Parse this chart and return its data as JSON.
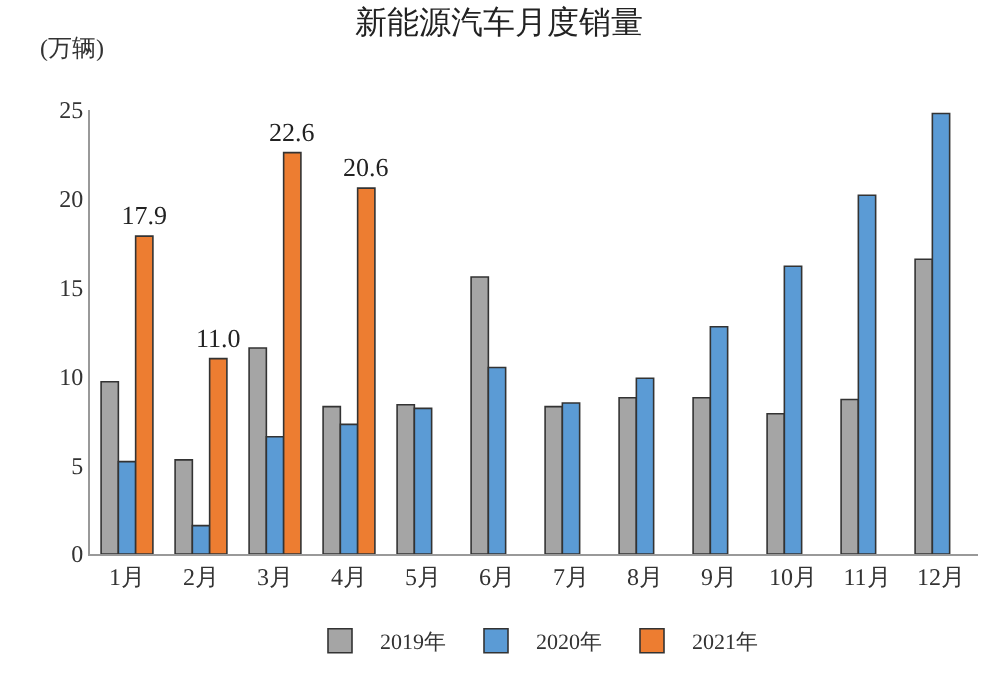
{
  "chart_data": {
    "type": "bar",
    "title": "新能源汽车月度销量",
    "ylabel": "(万辆)",
    "categories": [
      "1月",
      "2月",
      "3月",
      "4月",
      "5月",
      "6月",
      "7月",
      "8月",
      "9月",
      "10月",
      "11月",
      "12月"
    ],
    "series": [
      {
        "name": "2019年",
        "color": "#a5a5a5",
        "values": [
          9.7,
          5.3,
          11.6,
          8.3,
          8.4,
          15.6,
          8.3,
          8.8,
          8.8,
          7.9,
          8.7,
          16.6
        ]
      },
      {
        "name": "2020年",
        "color": "#5b9bd5",
        "values": [
          5.2,
          1.6,
          6.6,
          7.3,
          8.2,
          10.5,
          8.5,
          9.9,
          12.8,
          16.2,
          20.2,
          24.8
        ]
      },
      {
        "name": "2021年",
        "color": "#ed7d31",
        "values": [
          17.9,
          11.0,
          22.6,
          20.6,
          null,
          null,
          null,
          null,
          null,
          null,
          null,
          null
        ],
        "value_labels": [
          "17.9",
          "11.0",
          "22.6",
          "20.6",
          null,
          null,
          null,
          null,
          null,
          null,
          null,
          null
        ]
      }
    ],
    "ylim": [
      0,
      25
    ],
    "yticks": [
      0,
      5,
      10,
      15,
      20,
      25
    ],
    "legend": "bottom"
  }
}
